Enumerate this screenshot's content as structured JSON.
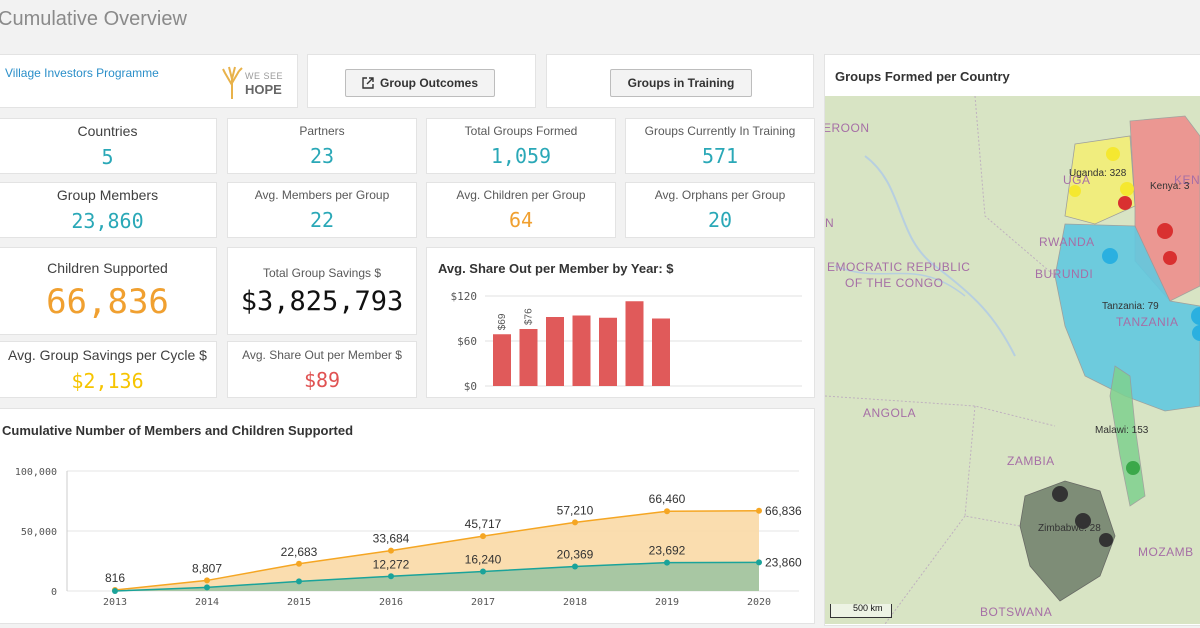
{
  "page": {
    "title": "Cumulative Overview"
  },
  "header": {
    "programme_link": "Village Investors Programme",
    "logo_top": "WE SEE",
    "logo_bottom": "HOPE",
    "group_outcomes_label": "Group Outcomes",
    "groups_in_training_label": "Groups in Training"
  },
  "kpis": {
    "countries": {
      "label": "Countries",
      "value": "5"
    },
    "partners": {
      "label": "Partners",
      "value": "23"
    },
    "total_groups": {
      "label": "Total Groups Formed",
      "value": "1,059"
    },
    "groups_training": {
      "label": "Groups Currently In Training",
      "value": "571"
    },
    "group_members": {
      "label": "Group Members",
      "value": "23,860"
    },
    "avg_members": {
      "label": "Avg. Members per Group",
      "value": "22"
    },
    "avg_children": {
      "label": "Avg. Children per Group",
      "value": "64"
    },
    "avg_orphans": {
      "label": "Avg. Orphans per Group",
      "value": "20"
    },
    "children_supported": {
      "label": "Children Supported",
      "value": "66,836"
    },
    "total_savings": {
      "label": "Total Group Savings $",
      "value": "$3,825,793"
    },
    "avg_savings_cycle": {
      "label": "Avg. Group Savings per Cycle $",
      "value": "$2,136"
    },
    "avg_share_out": {
      "label": "Avg. Share Out per Member $",
      "value": "$89"
    }
  },
  "colors": {
    "teal": "#2aa8b7",
    "orange": "#f0a030",
    "yellow": "#f6c400",
    "red": "#e05252",
    "bar": "#e05a5a",
    "members_line": "#1aa39a",
    "children_line": "#f5a623"
  },
  "chart_data": [
    {
      "type": "bar",
      "title": "Avg. Share Out per Member by Year: $",
      "ylim": [
        0,
        120
      ],
      "yticks": [
        "$0",
        "$60",
        "$120"
      ],
      "values": [
        69,
        76,
        92,
        94,
        91,
        113,
        90
      ],
      "data_labels": [
        "$69",
        "$76",
        "",
        "",
        "",
        "",
        ""
      ]
    },
    {
      "type": "line",
      "title": "Cumulative Number of Members and Children Supported",
      "x": [
        "2013",
        "2014",
        "2015",
        "2016",
        "2017",
        "2018",
        "2019",
        "2020"
      ],
      "ylim": [
        0,
        100000
      ],
      "yticks": [
        "0",
        "50,000",
        "100,000"
      ],
      "series": [
        {
          "values": [
            816,
            8807,
            22683,
            33684,
            45717,
            57210,
            66460,
            66836
          ],
          "labels": [
            "816",
            "8,807",
            "22,683",
            "33,684",
            "45,717",
            "57,210",
            "66,460",
            "66,836"
          ]
        },
        {
          "values": [
            0,
            3000,
            8000,
            12272,
            16240,
            20369,
            23692,
            23860
          ],
          "labels": [
            "",
            "",
            "",
            "12,272",
            "16,240",
            "20,369",
            "23,692",
            "23,860"
          ]
        }
      ]
    }
  ],
  "map": {
    "title": "Groups Formed per Country",
    "labels": {
      "cameroon": "EROON",
      "n": "N",
      "drc1": "EMOCRATIC REPUBLIC",
      "drc2": "OF THE CONGO",
      "rwanda": "RWANDA",
      "burundi": "BURUNDI",
      "angola": "ANGOLA",
      "zambia": "ZAMBIA",
      "tanzania": "TANZANIA",
      "botswana": "BOTSWANA",
      "mozambique": "MOZAMB",
      "uganda": "UGA",
      "kenya_region": "KENY",
      "uganda_count": "Uganda: 328",
      "kenya_count": "Kenya: 3",
      "tanzania_count": "Tanzania: 79",
      "malawi_count": "Malawi: 153",
      "zimbabwe_count": "Zimbabwe: 28",
      "scale": "500 km"
    }
  }
}
